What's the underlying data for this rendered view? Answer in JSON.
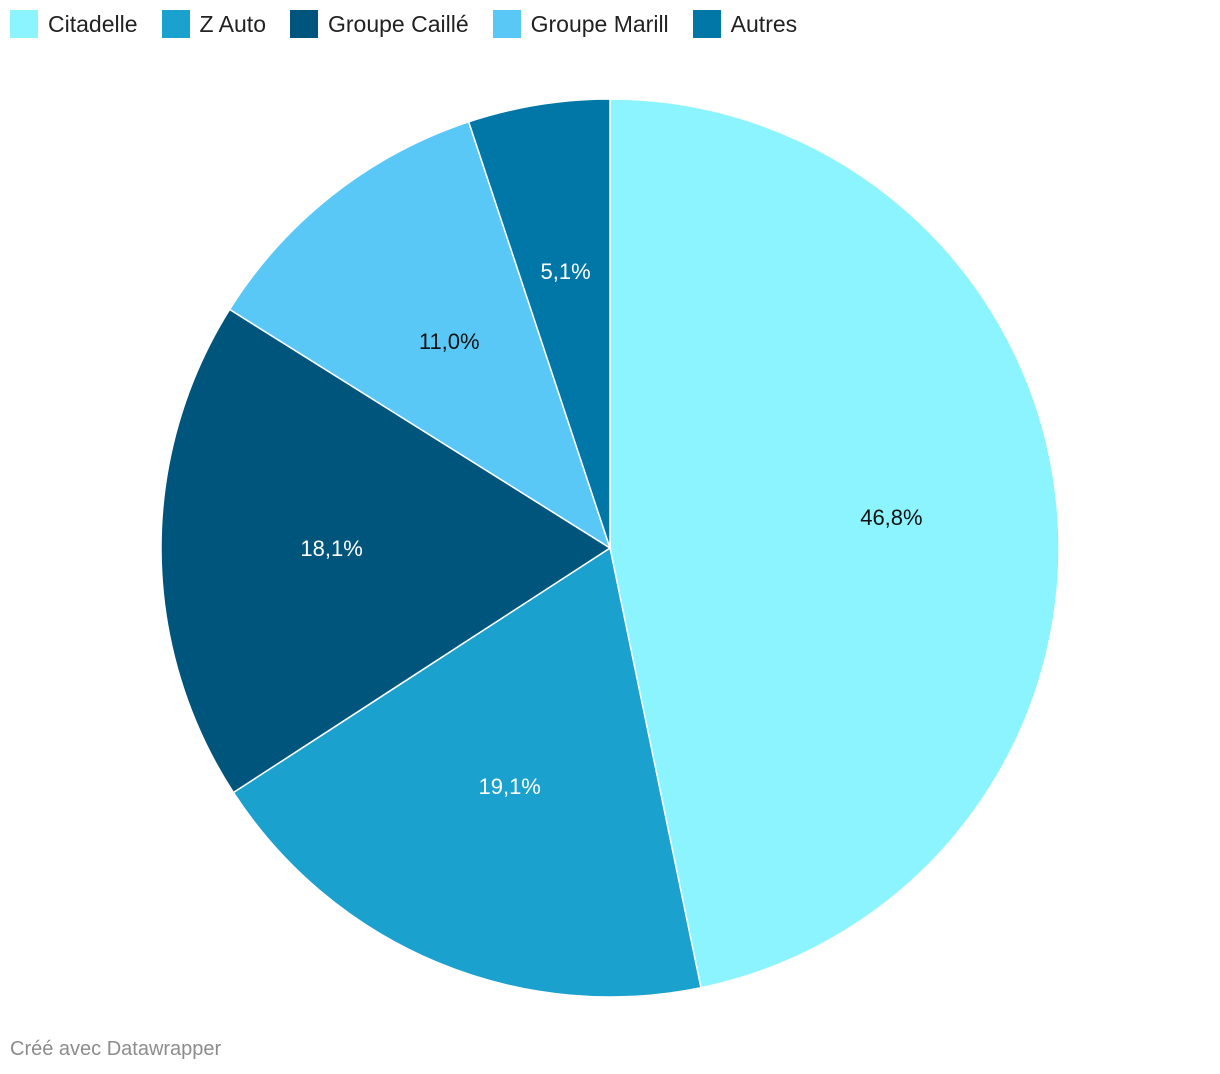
{
  "chart_data": {
    "type": "pie",
    "categories": [
      "Citadelle",
      "Z Auto",
      "Groupe Caillé",
      "Groupe Marill",
      "Autres"
    ],
    "values": [
      46.8,
      19.1,
      18.1,
      11.0,
      5.1
    ],
    "labels": [
      "46,8%",
      "19,1%",
      "18,1%",
      "11,0%",
      "5,1%"
    ],
    "colors": [
      "#8cf4fe",
      "#1ba1cd",
      "#00557c",
      "#5ac8f6",
      "#0077a6"
    ],
    "label_colors": [
      "#111111",
      "#ffffff",
      "#ffffff",
      "#111111",
      "#ffffff"
    ],
    "legend_position": "top-left",
    "start": "12 o'clock, clockwise"
  },
  "footer": {
    "credit": "Créé avec Datawrapper"
  }
}
